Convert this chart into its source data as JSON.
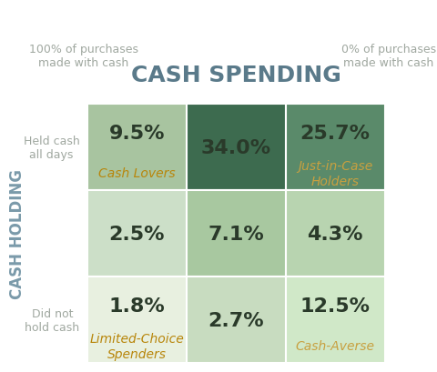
{
  "title": "CASH SPENDING",
  "ylabel": "CASH HOLDING",
  "top_left_label": "100% of purchases\nmade with cash",
  "top_right_label": "0% of purchases\nmade with cash",
  "row_labels": [
    "Held cash\nall days",
    "",
    "Did not\nhold cash"
  ],
  "cells": [
    [
      {
        "value": "9.5%",
        "label": "Cash Lovers",
        "label_color": "#b8860b",
        "bg": "#a8c4a0"
      },
      {
        "value": "34.0%",
        "label": "",
        "label_color": "#ffffff",
        "bg": "#3d6b4f"
      },
      {
        "value": "25.7%",
        "label": "Just-in-Case\nHolders",
        "label_color": "#c8a040",
        "bg": "#5a8a6a"
      }
    ],
    [
      {
        "value": "2.5%",
        "label": "",
        "label_color": "",
        "bg": "#ccdfc8"
      },
      {
        "value": "7.1%",
        "label": "",
        "label_color": "",
        "bg": "#a8c8a0"
      },
      {
        "value": "4.3%",
        "label": "",
        "label_color": "",
        "bg": "#b8d4b0"
      }
    ],
    [
      {
        "value": "1.8%",
        "label": "Limited-Choice\nSpenders",
        "label_color": "#b8860b",
        "bg": "#e8f0e0"
      },
      {
        "value": "2.7%",
        "label": "",
        "label_color": "",
        "bg": "#c8dcc0"
      },
      {
        "value": "12.5%",
        "label": "Cash-Averse",
        "label_color": "#c8a040",
        "bg": "#d0e8c8"
      }
    ]
  ],
  "value_fontsize": 16,
  "label_fontsize": 10,
  "title_fontsize": 18,
  "axis_label_fontsize": 12,
  "annotation_fontsize": 9,
  "row_label_fontsize": 9,
  "title_color": "#5a7a8a",
  "axis_label_color": "#7a9aaa",
  "annotation_color": "#a0a8a0",
  "row_label_color": "#a0a8a0",
  "value_color": "#2a3a2a",
  "grid_color": "#ffffff"
}
